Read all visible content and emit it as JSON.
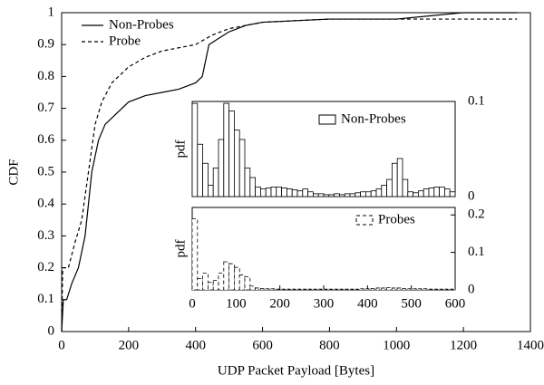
{
  "chart_data": [
    {
      "type": "line",
      "xlabel": "UDP Packet Payload [Bytes]",
      "ylabel": "CDF",
      "xlim": [
        0,
        1400
      ],
      "xticks": [
        0,
        200,
        400,
        600,
        800,
        1000,
        1200,
        1400
      ],
      "ylim": [
        0,
        1
      ],
      "yticks": [
        0,
        0.1,
        0.2,
        0.3,
        0.4,
        0.5,
        0.6,
        0.7,
        0.8,
        0.9,
        1
      ],
      "series": [
        {
          "name": "Non-Probes",
          "color": "#000000",
          "linestyle": "solid",
          "x": [
            0,
            5,
            15,
            30,
            50,
            70,
            90,
            110,
            130,
            160,
            200,
            250,
            300,
            350,
            400,
            420,
            440,
            470,
            500,
            550,
            600,
            800,
            1000,
            1100,
            1200,
            1360
          ],
          "values": [
            0,
            0.1,
            0.1,
            0.15,
            0.2,
            0.3,
            0.5,
            0.6,
            0.65,
            0.68,
            0.72,
            0.74,
            0.75,
            0.76,
            0.78,
            0.8,
            0.9,
            0.92,
            0.94,
            0.96,
            0.97,
            0.98,
            0.98,
            0.99,
            1,
            1
          ]
        },
        {
          "name": "Probe",
          "color": "#000000",
          "linestyle": "dashed",
          "x": [
            0,
            3,
            20,
            40,
            60,
            80,
            100,
            120,
            150,
            200,
            250,
            300,
            400,
            450,
            500,
            550,
            600,
            800,
            1360
          ],
          "values": [
            0,
            0.2,
            0.2,
            0.28,
            0.35,
            0.5,
            0.65,
            0.72,
            0.78,
            0.83,
            0.86,
            0.88,
            0.9,
            0.93,
            0.95,
            0.96,
            0.97,
            0.98,
            0.98
          ]
        }
      ]
    },
    {
      "type": "histogram",
      "ylabel": "pdf",
      "name": "Non-Probes",
      "color": "#000000",
      "linestyle": "solid",
      "xlim": [
        0,
        600
      ],
      "ylim": [
        0,
        0.1
      ],
      "yticks": [
        0,
        0.1
      ],
      "bins": [
        0,
        12,
        24,
        36,
        48,
        60,
        72,
        84,
        96,
        108,
        120,
        132,
        144,
        156,
        168,
        180,
        192,
        204,
        216,
        228,
        240,
        252,
        264,
        276,
        288,
        300,
        312,
        324,
        336,
        348,
        360,
        372,
        384,
        396,
        408,
        420,
        432,
        444,
        456,
        468,
        480,
        492,
        504,
        516,
        528,
        540,
        552,
        564,
        576,
        588,
        600
      ],
      "values": [
        0.098,
        0.055,
        0.035,
        0.012,
        0.03,
        0.06,
        0.098,
        0.09,
        0.07,
        0.06,
        0.03,
        0.02,
        0.01,
        0.008,
        0.009,
        0.01,
        0.01,
        0.009,
        0.008,
        0.007,
        0.006,
        0.008,
        0.005,
        0.003,
        0.003,
        0.002,
        0.002,
        0.003,
        0.002,
        0.003,
        0.003,
        0.004,
        0.005,
        0.005,
        0.006,
        0.008,
        0.012,
        0.018,
        0.035,
        0.04,
        0.018,
        0.005,
        0.004,
        0.006,
        0.008,
        0.009,
        0.01,
        0.01,
        0.008,
        0.005
      ]
    },
    {
      "type": "histogram",
      "ylabel": "pdf",
      "name": "Probes",
      "color": "#000000",
      "linestyle": "dashed",
      "xlim": [
        0,
        600
      ],
      "xticks": [
        0,
        100,
        200,
        300,
        400,
        500,
        600
      ],
      "ylim": [
        0,
        0.22
      ],
      "yticks": [
        0,
        0.1,
        0.2
      ],
      "bins": [
        0,
        12,
        24,
        36,
        48,
        60,
        72,
        84,
        96,
        108,
        120,
        132,
        144,
        156,
        168,
        180,
        192,
        204,
        216,
        228,
        240,
        252,
        264,
        276,
        288,
        300,
        312,
        324,
        336,
        348,
        360,
        372,
        384,
        396,
        408,
        420,
        432,
        444,
        456,
        468,
        480,
        492,
        504,
        516,
        528,
        540,
        552,
        564,
        576,
        588,
        600
      ],
      "values": [
        0.19,
        0.03,
        0.045,
        0.02,
        0.025,
        0.045,
        0.075,
        0.07,
        0.06,
        0.04,
        0.035,
        0.01,
        0.005,
        0.004,
        0.003,
        0.003,
        0.002,
        0.002,
        0.002,
        0.002,
        0.002,
        0.002,
        0.002,
        0.002,
        0.002,
        0.002,
        0.002,
        0.002,
        0.002,
        0.002,
        0.002,
        0.002,
        0.003,
        0.003,
        0.004,
        0.005,
        0.005,
        0.006,
        0.005,
        0.005,
        0.004,
        0.003,
        0.003,
        0.003,
        0.003,
        0.002,
        0.002,
        0.002,
        0.002,
        0.002
      ]
    }
  ]
}
